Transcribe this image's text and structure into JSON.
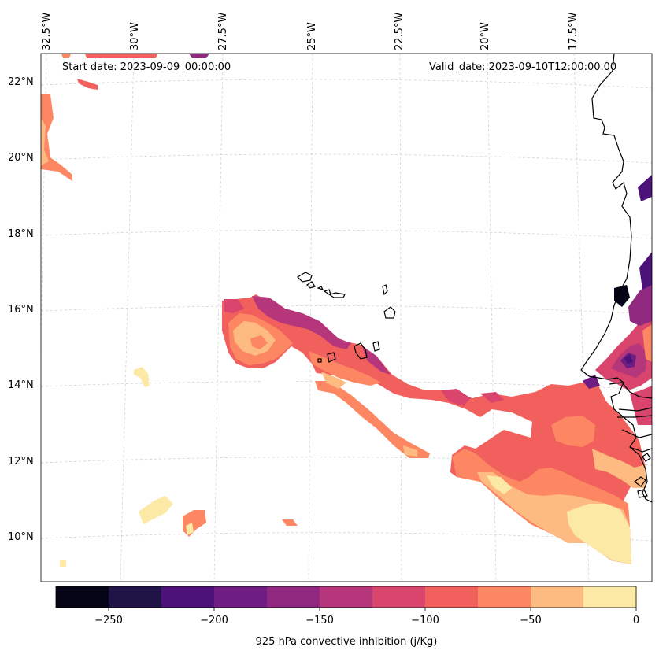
{
  "map": {
    "start_date": "Start date: 2023-09-09_00:00:00",
    "valid_date": "Valid_date: 2023-09-10T12:00:00.00",
    "lon_labels": [
      "32.5°W",
      "30°W",
      "27.5°W",
      "25°W",
      "22.5°W",
      "20°W",
      "17.5°W"
    ],
    "lat_labels": [
      "22°N",
      "20°N",
      "18°N",
      "16°N",
      "14°N",
      "12°N",
      "10°N"
    ],
    "variable": "925 hPa convective inhibition (j/Kg)"
  },
  "colorbar": {
    "ticks": [
      "−250",
      "−200",
      "−150",
      "−100",
      "−50",
      "0"
    ],
    "levels": [
      -275,
      -250,
      -225,
      -200,
      -175,
      -150,
      -125,
      -100,
      -75,
      -50,
      -25,
      0
    ],
    "colors": [
      "#050416",
      "#201346",
      "#4c127a",
      "#6e1d82",
      "#90287f",
      "#b5367a",
      "#d9456c",
      "#f1605d",
      "#fc8762",
      "#febb81",
      "#fce9a6"
    ]
  }
}
